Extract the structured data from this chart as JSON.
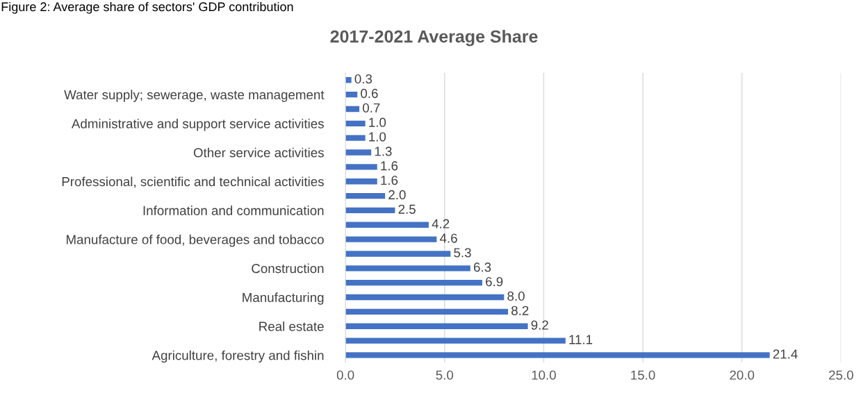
{
  "chart_data": {
    "type": "bar",
    "orientation": "horizontal",
    "title": "2017-2021 Average Share",
    "annotations": [
      "Figure 2: Average share of sectors' GDP contribution"
    ],
    "categories": [
      null,
      "Water supply; sewerage, waste management",
      null,
      "Administrative and support service activities",
      null,
      "Other service activities",
      null,
      "Professional, scientific and technical activities",
      null,
      "Information and communication",
      null,
      "Manufacture of food, beverages and tobacco",
      null,
      "Construction",
      null,
      "Manufacturing",
      null,
      "Real estate",
      null,
      "Agriculture, forestry and fishin"
    ],
    "values": [
      0.3,
      0.6,
      0.7,
      1.0,
      1.0,
      1.3,
      1.6,
      1.6,
      2.0,
      2.5,
      4.2,
      4.6,
      5.3,
      6.3,
      6.9,
      8.0,
      8.2,
      9.2,
      11.1,
      21.4
    ],
    "color": "#4472c4",
    "xlim": [
      0,
      25
    ],
    "xticks": [
      {
        "value": 0,
        "label": "0.0"
      },
      {
        "value": 5,
        "label": "5.0"
      },
      {
        "value": 10,
        "label": "10.0"
      },
      {
        "value": 15,
        "label": "15.0"
      },
      {
        "value": 20,
        "label": "20.0"
      },
      {
        "value": 25,
        "label": "25.0"
      }
    ],
    "value_labels": [
      "0.3",
      "0.6",
      "0.7",
      "1.0",
      "1.0",
      "1.3",
      "1.6",
      "1.6",
      "2.0",
      "2.5",
      "4.2",
      "4.6",
      "5.3",
      "6.3",
      "6.9",
      "8.0",
      "8.2",
      "9.2",
      "11.1",
      "21.4"
    ],
    "grid": "x",
    "legend": false
  }
}
